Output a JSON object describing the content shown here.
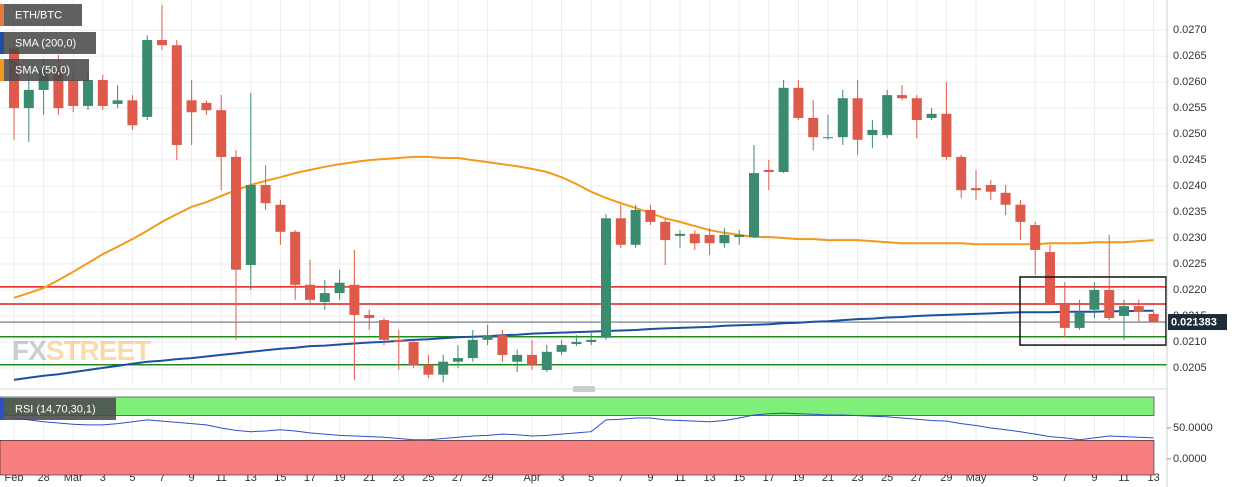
{
  "chart_data": [
    {
      "type": "candlestick",
      "name": "ETH/BTC",
      "color": "#e07b39",
      "up_color": "#3b8c6e",
      "down_color": "#de5a4a",
      "categories": [
        "Feb",
        null,
        "28",
        null,
        "Mar",
        null,
        "3",
        null,
        "5",
        null,
        "7",
        null,
        "9",
        null,
        "11",
        null,
        "13",
        null,
        "15",
        null,
        "17",
        null,
        "19",
        null,
        "21",
        null,
        "23",
        null,
        "25",
        null,
        "27",
        null,
        "29",
        null,
        null,
        "Apr",
        null,
        "3",
        null,
        "5",
        null,
        "7",
        null,
        "9",
        null,
        "11",
        null,
        "13",
        null,
        "15",
        null,
        "17",
        null,
        "19",
        null,
        "21",
        null,
        "23",
        null,
        "25",
        null,
        "27",
        null,
        "29",
        null,
        "May",
        null,
        null,
        null,
        "5",
        null,
        "7",
        null,
        "9",
        null,
        "11",
        null,
        "13"
      ],
      "open": [
        0.02665,
        0.0255,
        0.02585,
        0.02623,
        0.02604,
        0.02554,
        0.02604,
        0.02558,
        0.02565,
        0.02533,
        0.02681,
        0.02671,
        0.02565,
        0.0256,
        0.02546,
        0.02456,
        0.02248,
        0.02402,
        0.02364,
        0.02312,
        0.0221,
        0.02177,
        0.02194,
        0.0221,
        0.02152,
        0.02142,
        0.02104,
        0.021,
        0.02056,
        0.02037,
        0.02062,
        0.02069,
        0.02104,
        0.02113,
        0.02062,
        0.02075,
        0.02046,
        0.02081,
        0.02096,
        0.021,
        0.02108,
        0.02338,
        0.02287,
        0.02354,
        0.02331,
        0.02304,
        0.02308,
        0.02306,
        0.0229,
        0.02302,
        0.02302,
        0.02431,
        0.02427,
        0.02589,
        0.02531,
        0.02492,
        0.02494,
        0.02569,
        0.02498,
        0.02498,
        0.02575,
        0.02569,
        0.02531,
        0.02539,
        0.02456,
        0.02396,
        0.02402,
        0.02387,
        0.02364,
        0.02325,
        0.02273,
        0.02175,
        0.02127,
        0.02162,
        0.022,
        0.0215,
        0.02169,
        0.02154
      ],
      "high": [
        0.02681,
        0.02623,
        0.02642,
        0.02652,
        0.02623,
        0.02623,
        0.02614,
        0.02594,
        0.02575,
        0.0269,
        0.02748,
        0.02681,
        0.02604,
        0.02565,
        0.02575,
        0.02469,
        0.02579,
        0.0244,
        0.02373,
        0.02315,
        0.02258,
        0.02219,
        0.02239,
        0.02277,
        0.02162,
        0.02146,
        0.02123,
        0.02104,
        0.02075,
        0.02075,
        0.02094,
        0.02123,
        0.02133,
        0.02123,
        0.02085,
        0.02104,
        0.02094,
        0.02104,
        0.02113,
        0.02117,
        0.02346,
        0.02364,
        0.02364,
        0.02364,
        0.02338,
        0.02315,
        0.02315,
        0.02319,
        0.02319,
        0.02315,
        0.02479,
        0.0245,
        0.02604,
        0.02604,
        0.02565,
        0.02537,
        0.02585,
        0.02604,
        0.02527,
        0.02585,
        0.02594,
        0.02575,
        0.0255,
        0.026,
        0.0246,
        0.02431,
        0.02412,
        0.02402,
        0.02373,
        0.02331,
        0.02287,
        0.02215,
        0.02181,
        0.02215,
        0.02306,
        0.02181,
        0.02181,
        0.02158
      ],
      "low": [
        0.02489,
        0.02485,
        0.02537,
        0.02537,
        0.02542,
        0.02546,
        0.02546,
        0.0255,
        0.02508,
        0.02527,
        0.02662,
        0.0245,
        0.02479,
        0.02537,
        0.02392,
        0.02104,
        0.022,
        0.02354,
        0.02287,
        0.02181,
        0.02171,
        0.02162,
        0.02181,
        0.02027,
        0.02123,
        0.02094,
        0.02046,
        0.0205,
        0.02031,
        0.02022,
        0.0205,
        0.02062,
        0.02094,
        0.02062,
        0.02042,
        0.02046,
        0.02042,
        0.02075,
        0.02092,
        0.02094,
        0.02104,
        0.02281,
        0.02281,
        0.02325,
        0.02248,
        0.02281,
        0.02277,
        0.02267,
        0.02281,
        0.02287,
        0.023,
        0.02392,
        0.02425,
        0.02527,
        0.02469,
        0.02489,
        0.02479,
        0.0246,
        0.02473,
        0.02492,
        0.02565,
        0.02492,
        0.02527,
        0.0245,
        0.02377,
        0.02373,
        0.02373,
        0.02344,
        0.02296,
        0.02229,
        0.02171,
        0.02108,
        0.02123,
        0.02146,
        0.02142,
        0.02104,
        0.02138,
        0.02138
      ],
      "close": [
        0.0255,
        0.02585,
        0.02623,
        0.0255,
        0.02554,
        0.02604,
        0.02554,
        0.02565,
        0.02517,
        0.02681,
        0.02671,
        0.02479,
        0.02542,
        0.02546,
        0.02456,
        0.02239,
        0.02402,
        0.02367,
        0.02312,
        0.0221,
        0.02181,
        0.02194,
        0.02214,
        0.02152,
        0.02146,
        0.02104,
        0.021,
        0.02056,
        0.02037,
        0.02062,
        0.02069,
        0.02104,
        0.02113,
        0.02075,
        0.02075,
        0.02056,
        0.02081,
        0.02094,
        0.021,
        0.02104,
        0.02338,
        0.02287,
        0.02354,
        0.02331,
        0.02296,
        0.02308,
        0.0229,
        0.0229,
        0.02306,
        0.02306,
        0.02425,
        0.02427,
        0.02589,
        0.02531,
        0.02494,
        0.02494,
        0.02569,
        0.02489,
        0.02508,
        0.02575,
        0.02569,
        0.02527,
        0.02539,
        0.02456,
        0.02392,
        0.02392,
        0.02389,
        0.02364,
        0.02331,
        0.02277,
        0.02175,
        0.02127,
        0.02156,
        0.022,
        0.02146,
        0.02169,
        0.02158,
        0.02138
      ],
      "overlays": [
        {
          "name": "SMA (200,0)",
          "color": "#1f4fa0",
          "values": [
            0.02027,
            0.02031,
            0.02035,
            0.02038,
            0.02042,
            0.02046,
            0.0205,
            0.02054,
            0.02058,
            0.02062,
            0.02064,
            0.02067,
            0.02069,
            0.02072,
            0.02075,
            0.02078,
            0.02081,
            0.02084,
            0.02087,
            0.02089,
            0.02092,
            0.02093,
            0.02095,
            0.02097,
            0.02099,
            0.021,
            0.02102,
            0.02104,
            0.02105,
            0.02107,
            0.02109,
            0.0211,
            0.02111,
            0.02113,
            0.02114,
            0.02116,
            0.02117,
            0.02118,
            0.02119,
            0.0212,
            0.02121,
            0.02122,
            0.02123,
            0.02125,
            0.02126,
            0.02127,
            0.02128,
            0.02129,
            0.02131,
            0.02132,
            0.02133,
            0.02134,
            0.02136,
            0.02137,
            0.02139,
            0.0214,
            0.02142,
            0.02144,
            0.02145,
            0.02147,
            0.02148,
            0.0215,
            0.02151,
            0.02152,
            0.02153,
            0.02154,
            0.02155,
            0.02156,
            0.02157,
            0.02157,
            0.02157,
            0.02158,
            0.02158,
            0.02158,
            0.02159,
            0.02159,
            0.0216,
            0.0216
          ]
        },
        {
          "name": "SMA (50,0)",
          "color": "#f39a1e",
          "values": [
            0.02185,
            0.02194,
            0.02204,
            0.02219,
            0.02235,
            0.02252,
            0.02269,
            0.02283,
            0.02298,
            0.02314,
            0.02331,
            0.02346,
            0.0236,
            0.02369,
            0.02381,
            0.02392,
            0.02402,
            0.0241,
            0.02417,
            0.02425,
            0.02431,
            0.02437,
            0.02442,
            0.02446,
            0.0245,
            0.02452,
            0.02454,
            0.02456,
            0.02456,
            0.02454,
            0.02454,
            0.0245,
            0.02446,
            0.02442,
            0.02438,
            0.02433,
            0.02427,
            0.02417,
            0.02404,
            0.02389,
            0.02377,
            0.02367,
            0.02358,
            0.02348,
            0.02338,
            0.02331,
            0.02323,
            0.02315,
            0.0231,
            0.02306,
            0.02302,
            0.02302,
            0.023,
            0.02298,
            0.02298,
            0.02296,
            0.02296,
            0.02296,
            0.02294,
            0.02292,
            0.0229,
            0.0229,
            0.0229,
            0.0229,
            0.0229,
            0.02288,
            0.02288,
            0.02288,
            0.02288,
            0.02288,
            0.0229,
            0.0229,
            0.0229,
            0.02292,
            0.02292,
            0.02292,
            0.02294,
            0.02296
          ]
        }
      ],
      "levels": [
        {
          "value": 0.02206,
          "color": "#e41a1a"
        },
        {
          "value": 0.02173,
          "color": "#e41a1a"
        },
        {
          "value": 0.0211,
          "color": "#1e8a1e"
        },
        {
          "value": 0.02056,
          "color": "#1e8a1e"
        }
      ],
      "last_price": 0.021383,
      "box": {
        "from": 68,
        "ylim": [
          0.02094,
          0.02225
        ]
      },
      "watermark": [
        "FX",
        "STREET"
      ],
      "grid": true,
      "ylim": [
        0.02021,
        0.02758
      ],
      "yticks": [
        {
          "value": 0.0205,
          "label": "0.0205"
        },
        {
          "value": 0.021,
          "label": "0.0210"
        },
        {
          "value": 0.0215,
          "label": "0.0215"
        },
        {
          "value": 0.022,
          "label": "0.0220"
        },
        {
          "value": 0.0225,
          "label": "0.0225"
        },
        {
          "value": 0.023,
          "label": "0.0230"
        },
        {
          "value": 0.0235,
          "label": "0.0235"
        },
        {
          "value": 0.024,
          "label": "0.0240"
        },
        {
          "value": 0.0245,
          "label": "0.0245"
        },
        {
          "value": 0.025,
          "label": "0.0250"
        },
        {
          "value": 0.0255,
          "label": "0.0255"
        },
        {
          "value": 0.026,
          "label": "0.0260"
        },
        {
          "value": 0.0265,
          "label": "0.0265"
        },
        {
          "value": 0.027,
          "label": "0.0270"
        }
      ]
    },
    {
      "type": "line",
      "name": "RSI (14,70,30,1)",
      "color": "#2f4fc8",
      "values": [
        66,
        63,
        60,
        58,
        56,
        55,
        55,
        57,
        60,
        63,
        61,
        59,
        57,
        55,
        50,
        46,
        44,
        45,
        47,
        45,
        42,
        40,
        38,
        37,
        36,
        35,
        33,
        31,
        31,
        33,
        35,
        37,
        38,
        40,
        39,
        37,
        38,
        40,
        42,
        44,
        63,
        64,
        66,
        66,
        63,
        62,
        61,
        60,
        62,
        66,
        71,
        73,
        74,
        73,
        72,
        71,
        71,
        70,
        69,
        68,
        66,
        64,
        62,
        61,
        57,
        54,
        50,
        47,
        44,
        40,
        36,
        34,
        31,
        34,
        37,
        36,
        35,
        34
      ],
      "bands": [
        {
          "ylim": [
            70,
            100
          ],
          "color": "#7ef07a"
        },
        {
          "ylim": [
            -26,
            30
          ],
          "color": "#f77f7f"
        }
      ],
      "ylim": [
        -26,
        100
      ],
      "yticks": [
        {
          "value": 50,
          "label": "50.0000"
        },
        {
          "value": 0,
          "label": "0.0000"
        }
      ]
    }
  ]
}
